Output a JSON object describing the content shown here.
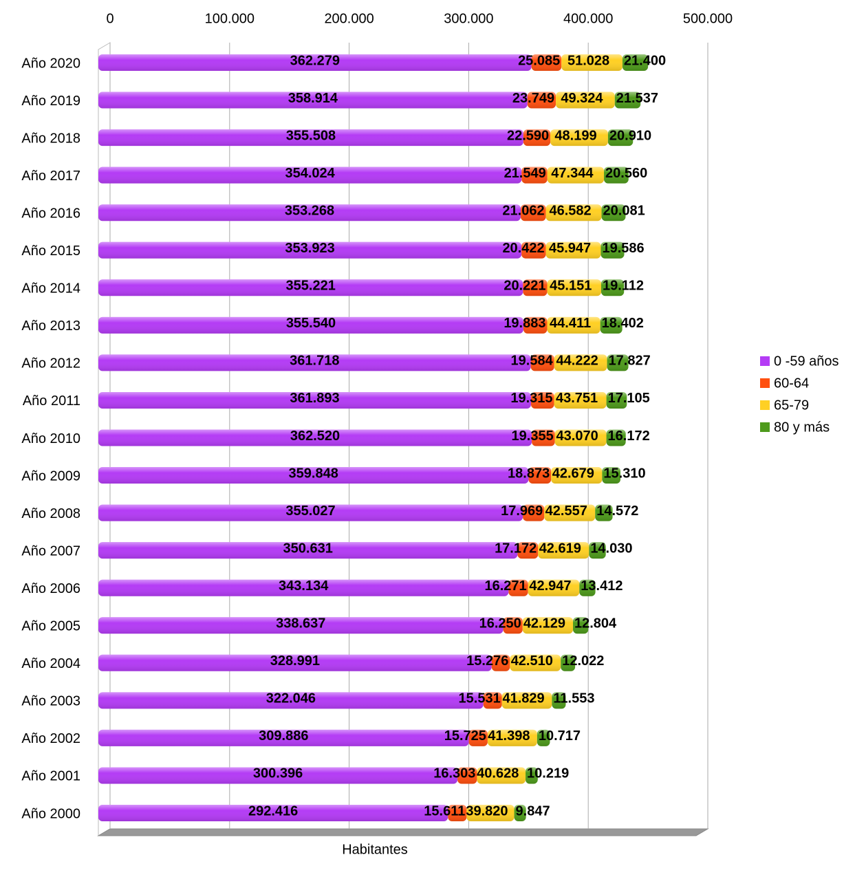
{
  "chart_data": {
    "type": "stacked_barh",
    "x_label": "Habitantes",
    "categories": [
      "Año 2020",
      "Año 2019",
      "Año 2018",
      "Año 2017",
      "Año 2016",
      "Año 2015",
      "Año 2014",
      "Año 2013",
      "Año 2012",
      "Año 2011",
      "Año 2010",
      "Año 2009",
      "Año 2008",
      "Año 2007",
      "Año 2006",
      "Año 2005",
      "Año 2004",
      "Año 2003",
      "Año 2002",
      "Año 2001",
      "Año 2000"
    ],
    "series": [
      {
        "name": "0 -59 años",
        "color": "#b43cf5",
        "values": [
          362279,
          358914,
          355508,
          354024,
          353268,
          353923,
          355221,
          355540,
          361718,
          361893,
          362520,
          359848,
          355027,
          350631,
          343134,
          338637,
          328991,
          322046,
          309886,
          300396,
          292416
        ],
        "value_labels": [
          "362.279",
          "358.914",
          "355.508",
          "354.024",
          "353.268",
          "353.923",
          "355.221",
          "355.540",
          "361.718",
          "361.893",
          "362.520",
          "359.848",
          "355.027",
          "350.631",
          "343.134",
          "338.637",
          "328.991",
          "322.046",
          "309.886",
          "300.396",
          "292.416"
        ]
      },
      {
        "name": "60-64",
        "color": "#ff5010",
        "values": [
          25085,
          23749,
          22590,
          21549,
          21062,
          20422,
          20221,
          19883,
          19584,
          19315,
          19355,
          18873,
          17969,
          17172,
          16271,
          16250,
          15276,
          15531,
          15725,
          16303,
          15611
        ],
        "value_labels": [
          "25.085",
          "23.749",
          "22.590",
          "21.549",
          "21.062",
          "20.422",
          "20.221",
          "19.883",
          "19.584",
          "19.315",
          "19.355",
          "18.873",
          "17.969",
          "17.172",
          "16.271",
          "16.250",
          "15.276",
          "15.531",
          "15.725",
          "16.303",
          "15.611"
        ]
      },
      {
        "name": "65-79",
        "color": "#ffd024",
        "values": [
          51028,
          49324,
          48199,
          47344,
          46582,
          45947,
          45151,
          44411,
          44222,
          43751,
          43070,
          42679,
          42557,
          42619,
          42947,
          42129,
          42510,
          41829,
          41398,
          40628,
          39820
        ],
        "value_labels": [
          "51.028",
          "49.324",
          "48.199",
          "47.344",
          "46.582",
          "45.947",
          "45.151",
          "44.411",
          "44.222",
          "43.751",
          "43.070",
          "42.679",
          "42.557",
          "42.619",
          "42.947",
          "42.129",
          "42.510",
          "41.829",
          "41.398",
          "40.628",
          "39.820"
        ]
      },
      {
        "name": "80 y más",
        "color": "#4e9a1c",
        "values": [
          21400,
          21537,
          20910,
          20560,
          20081,
          19586,
          19112,
          18402,
          17827,
          17105,
          16172,
          15310,
          14572,
          14030,
          13412,
          12804,
          12022,
          11553,
          10717,
          10219,
          9847
        ],
        "value_labels": [
          "21.400",
          "21.537",
          "20.910",
          "20.560",
          "20.081",
          "19.586",
          "19.112",
          "18.402",
          "17.827",
          "17.105",
          "16.172",
          "15.310",
          "14.572",
          "14.030",
          "13.412",
          "12.804",
          "12.022",
          "11.553",
          "10.717",
          "10.219",
          "9.847"
        ]
      }
    ],
    "xlim": [
      0,
      500000
    ],
    "xticks": [
      0,
      {
        "value": 100000,
        "label": "100.000"
      },
      {
        "value": 200000,
        "label": "200.000"
      },
      {
        "value": 300000,
        "label": "300.000"
      },
      {
        "value": 400000,
        "label": "400.000"
      },
      {
        "value": 500000,
        "label": "500.000"
      }
    ],
    "grid": true,
    "legend": "right"
  }
}
